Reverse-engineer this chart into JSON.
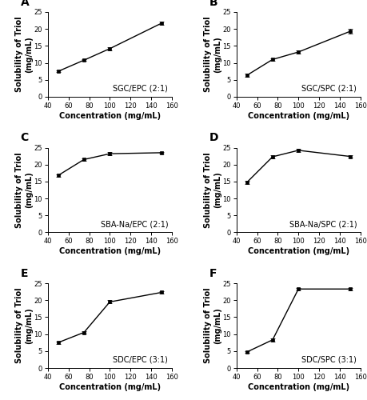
{
  "panels": [
    {
      "label": "A",
      "annotation": "SGC/EPC (2:1)",
      "x": [
        50,
        75,
        100,
        150
      ],
      "y": [
        7.5,
        10.8,
        14.2,
        21.7
      ],
      "yerr": [
        0.3,
        0.3,
        0.5,
        0.4
      ]
    },
    {
      "label": "B",
      "annotation": "SGC/SPC (2:1)",
      "x": [
        50,
        75,
        100,
        150
      ],
      "y": [
        6.3,
        11.0,
        13.2,
        19.3
      ],
      "yerr": [
        0.5,
        0.4,
        0.4,
        0.7
      ]
    },
    {
      "label": "C",
      "annotation": "SBA-Na/EPC (2:1)",
      "x": [
        50,
        75,
        100,
        150
      ],
      "y": [
        16.8,
        21.5,
        23.2,
        23.5
      ],
      "yerr": [
        0.3,
        0.3,
        0.4,
        0.3
      ]
    },
    {
      "label": "D",
      "annotation": "SBA-Na/SPC (2:1)",
      "x": [
        50,
        75,
        100,
        150
      ],
      "y": [
        14.7,
        22.3,
        24.2,
        22.4
      ],
      "yerr": [
        0.5,
        0.4,
        0.4,
        0.3
      ]
    },
    {
      "label": "E",
      "annotation": "SDC/EPC (3:1)",
      "x": [
        50,
        75,
        100,
        150
      ],
      "y": [
        7.5,
        10.5,
        19.5,
        22.3
      ],
      "yerr": [
        0.4,
        0.4,
        0.5,
        0.4
      ]
    },
    {
      "label": "F",
      "annotation": "SDC/SPC (3:1)",
      "x": [
        50,
        75,
        100,
        150
      ],
      "y": [
        4.7,
        8.3,
        23.3,
        23.3
      ],
      "yerr": [
        0.3,
        0.4,
        0.4,
        0.3
      ]
    }
  ],
  "xlabel": "Concentration (mg/mL)",
  "ylabel": "Solubility of Triol\n(mg/mL)",
  "ylim": [
    0,
    25
  ],
  "xlim": [
    40,
    160
  ],
  "xticks": [
    40,
    60,
    80,
    100,
    120,
    140,
    160
  ],
  "yticks": [
    0,
    5,
    10,
    15,
    20,
    25
  ],
  "line_color": "black",
  "marker": "s",
  "markersize": 3.5,
  "capsize": 2,
  "linewidth": 1.0,
  "annotation_fontsize": 7,
  "axis_label_fontsize": 7,
  "tick_fontsize": 6,
  "panel_label_fontsize": 10
}
